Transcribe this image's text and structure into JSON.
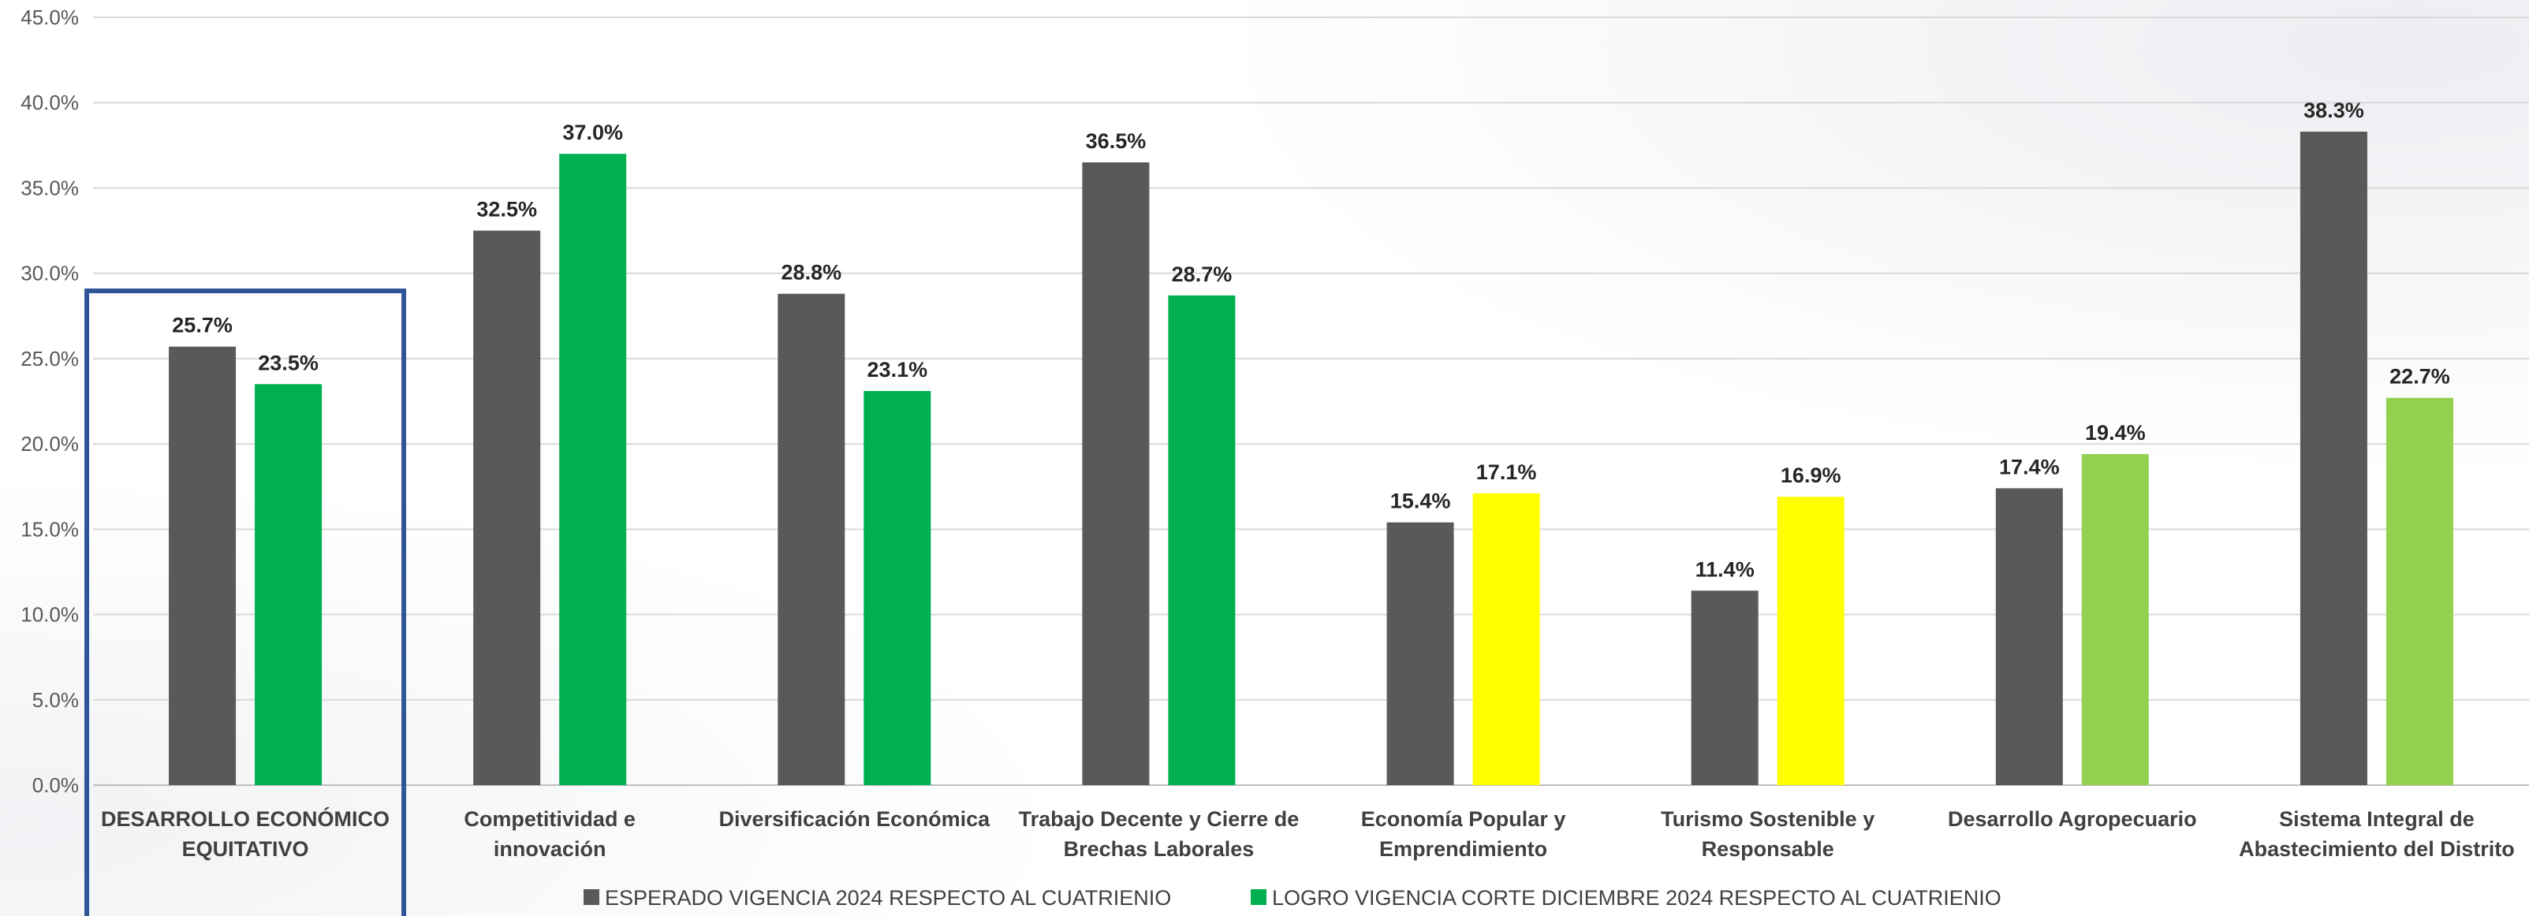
{
  "chart_data": {
    "type": "bar",
    "categories": [
      [
        "DESARROLLO ECONÓMICO",
        "EQUITATIVO"
      ],
      [
        "Competitividad e",
        "innovación"
      ],
      [
        "Diversificación Económica"
      ],
      [
        "Trabajo Decente y Cierre de",
        "Brechas Laborales"
      ],
      [
        "Economía Popular y",
        "Emprendimiento"
      ],
      [
        "Turismo Sostenible y",
        "Responsable"
      ],
      [
        "Desarrollo Agropecuario"
      ],
      [
        "Sistema Integral de",
        "Abastecimiento del Distrito"
      ]
    ],
    "series": [
      {
        "name": "ESPERADO VIGENCIA  2024 RESPECTO AL CUATRIENIO",
        "color": "#595959",
        "values": [
          25.7,
          32.5,
          28.8,
          36.5,
          15.4,
          11.4,
          17.4,
          38.3
        ],
        "labels": [
          "25.7%",
          "32.5%",
          "28.8%",
          "36.5%",
          "15.4%",
          "11.4%",
          "17.4%",
          "38.3%"
        ],
        "colors": [
          "#595959",
          "#595959",
          "#595959",
          "#595959",
          "#595959",
          "#595959",
          "#595959",
          "#595959"
        ]
      },
      {
        "name": "LOGRO VIGENCIA  CORTE DICIEMBRE 2024 RESPECTO AL CUATRIENIO",
        "color": "#00b050",
        "values": [
          23.5,
          37.0,
          23.1,
          28.7,
          17.1,
          16.9,
          19.4,
          22.7
        ],
        "labels": [
          "23.5%",
          "37.0%",
          "23.1%",
          "28.7%",
          "17.1%",
          "16.9%",
          "19.4%",
          "22.7%"
        ],
        "colors": [
          "#00b050",
          "#00b050",
          "#00b050",
          "#00b050",
          "#ffff00",
          "#ffff00",
          "#92d050",
          "#92d050"
        ]
      }
    ],
    "ylim": [
      0,
      45
    ],
    "yticks": [
      "0.0%",
      "5.0%",
      "10.0%",
      "15.0%",
      "20.0%",
      "25.0%",
      "30.0%",
      "35.0%",
      "40.0%",
      "45.0%"
    ],
    "grid": true,
    "legend_position": "bottom",
    "highlight": {
      "category_index": 0,
      "color": "#2f5597"
    }
  }
}
